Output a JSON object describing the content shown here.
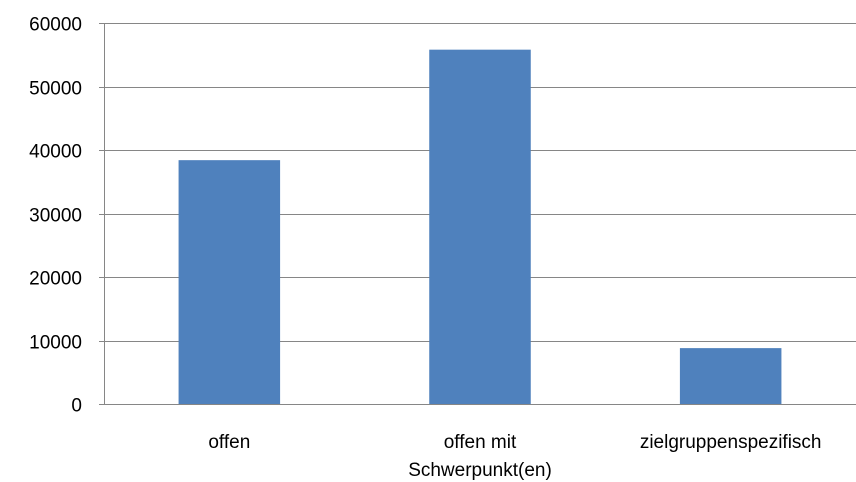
{
  "chart_data": {
    "type": "bar",
    "title": "",
    "xlabel": "",
    "ylabel": "",
    "categories": [
      [
        "offen"
      ],
      [
        "offen mit",
        "Schwerpunkt(en)"
      ],
      [
        "zielgruppenspezifisch"
      ]
    ],
    "values": [
      38400,
      55800,
      8800
    ],
    "ylim": [
      0,
      60000
    ],
    "yticks": [
      "0",
      "10000",
      "20000",
      "30000",
      "40000",
      "50000",
      "60000"
    ],
    "grid": true,
    "legend": "none",
    "colors": {
      "bar": "#4F81BD",
      "grid": "#868686",
      "axis": "#868686",
      "text": "#000000"
    }
  }
}
